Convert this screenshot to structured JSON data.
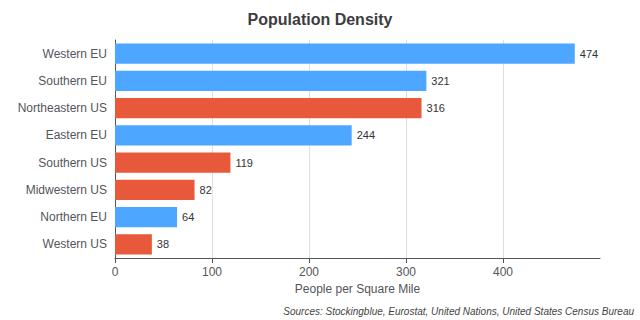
{
  "chart_data": {
    "type": "bar",
    "orientation": "horizontal",
    "title": "Population Density",
    "xlabel": "People per Square Mile",
    "annotation": "Sources: Stockingblue, Eurostat, United Nations, United States Census Bureau",
    "categories": [
      "Western US",
      "Northern EU",
      "Midwestern US",
      "Southern US",
      "Eastern EU",
      "Northeastern US",
      "Southern EU",
      "Western EU"
    ],
    "values": [
      38,
      64,
      82,
      119,
      244,
      316,
      321,
      474
    ],
    "colors": [
      "#e8583a",
      "#4da6ff",
      "#e8583a",
      "#e8583a",
      "#4da6ff",
      "#e8583a",
      "#4da6ff",
      "#4da6ff"
    ],
    "xlim": [
      0,
      500
    ],
    "xticks": [
      0,
      100,
      200,
      300,
      400
    ],
    "grid": true,
    "data_labels": true
  }
}
